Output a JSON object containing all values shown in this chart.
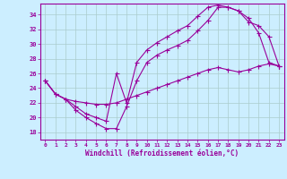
{
  "xlabel": "Windchill (Refroidissement éolien,°C)",
  "ylabel": "",
  "background_color": "#cceeff",
  "line_color": "#990099",
  "grid_color": "#aacccc",
  "xlim": [
    -0.5,
    23.5
  ],
  "ylim": [
    17,
    35.5
  ],
  "xticks": [
    0,
    1,
    2,
    3,
    4,
    5,
    6,
    7,
    8,
    9,
    10,
    11,
    12,
    13,
    14,
    15,
    16,
    17,
    18,
    19,
    20,
    21,
    22,
    23
  ],
  "yticks": [
    18,
    20,
    22,
    24,
    26,
    28,
    30,
    32,
    34
  ],
  "line1_x": [
    0,
    1,
    2,
    3,
    4,
    5,
    6,
    7,
    8,
    9,
    10,
    11,
    12,
    13,
    14,
    15,
    16,
    17,
    18,
    19,
    20,
    21,
    22,
    23
  ],
  "line1_y": [
    25.0,
    23.2,
    22.5,
    21.0,
    20.0,
    19.2,
    18.5,
    18.5,
    21.5,
    25.0,
    27.5,
    28.5,
    29.2,
    29.8,
    30.5,
    31.8,
    33.2,
    35.0,
    35.0,
    34.5,
    33.5,
    31.5,
    27.5,
    27.0
  ],
  "line2_x": [
    0,
    1,
    2,
    3,
    4,
    5,
    6,
    7,
    8,
    9,
    10,
    11,
    12,
    13,
    14,
    15,
    16,
    17,
    18,
    19,
    20,
    21,
    22,
    23
  ],
  "line2_y": [
    25.0,
    23.2,
    22.5,
    21.5,
    20.5,
    20.0,
    19.5,
    26.0,
    22.0,
    27.5,
    29.2,
    30.2,
    31.0,
    31.8,
    32.5,
    33.8,
    35.0,
    35.3,
    35.0,
    34.5,
    33.0,
    32.5,
    31.0,
    27.0
  ],
  "line3_x": [
    0,
    1,
    2,
    3,
    4,
    5,
    6,
    7,
    8,
    9,
    10,
    11,
    12,
    13,
    14,
    15,
    16,
    17,
    18,
    19,
    20,
    21,
    22,
    23
  ],
  "line3_y": [
    25.0,
    23.2,
    22.5,
    22.2,
    22.0,
    21.8,
    21.8,
    22.0,
    22.5,
    23.0,
    23.5,
    24.0,
    24.5,
    25.0,
    25.5,
    26.0,
    26.5,
    26.8,
    26.5,
    26.2,
    26.5,
    27.0,
    27.3,
    27.0
  ]
}
